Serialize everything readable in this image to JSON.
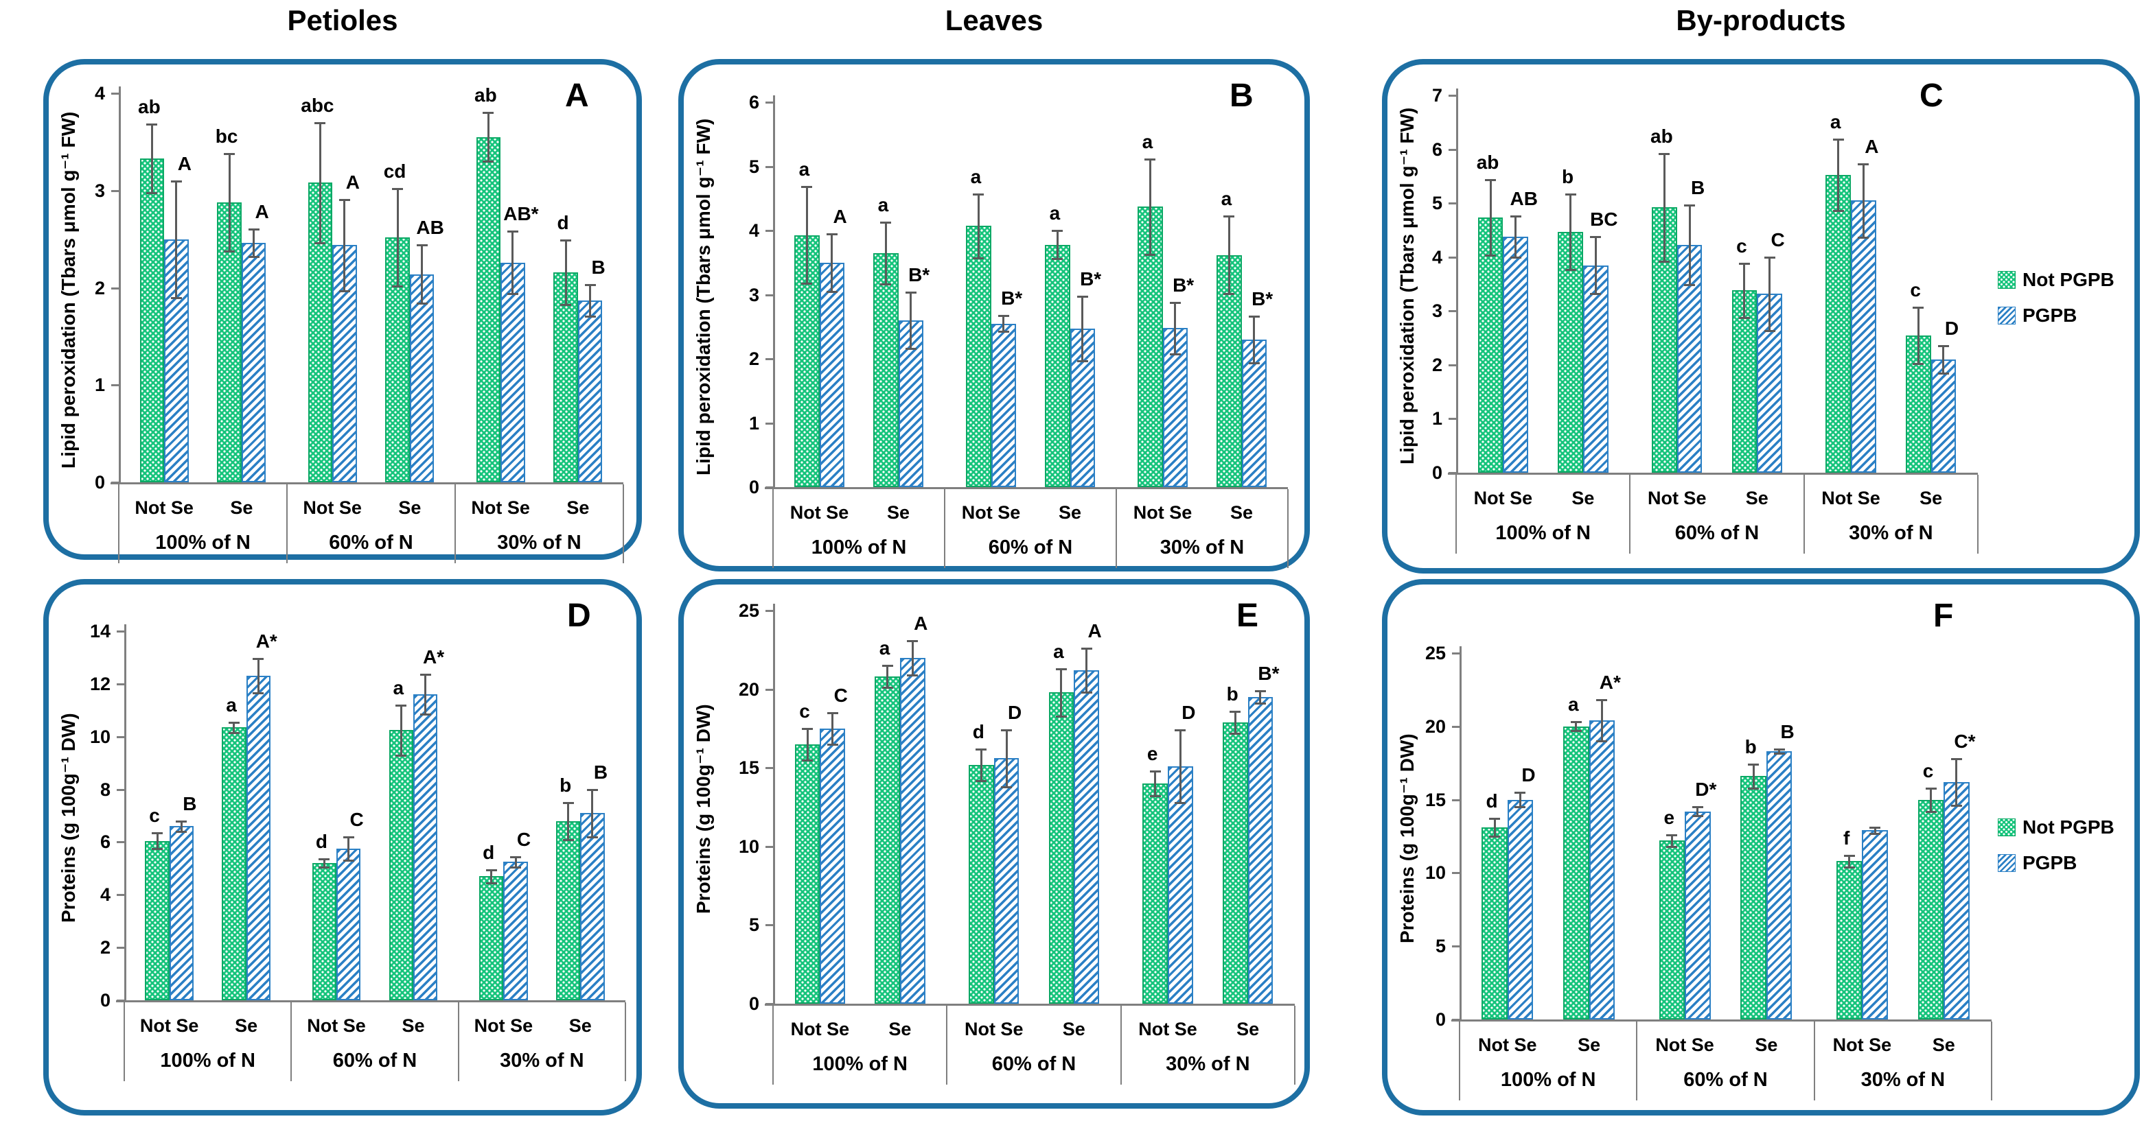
{
  "figure": {
    "column_titles": [
      "Petioles",
      "Leaves",
      "By-products"
    ],
    "legend": {
      "items": [
        {
          "label": "Not PGPB",
          "series": "not_pgpb"
        },
        {
          "label": "PGPB",
          "series": "pgpb"
        }
      ]
    },
    "colors": {
      "not_pgpb_fill": "#16c47c",
      "pgpb_stripe": "#2b80c5",
      "panel_border": "#1d6fa3",
      "error_bar": "#5a5a5a",
      "axis": "#7f7f7f",
      "text": "#000000"
    }
  },
  "chart_data": [
    {
      "type": "bar",
      "panel": "A",
      "column": "Petioles",
      "ylabel": "Lipid peroxidation (Tbars μmol g⁻¹ FW)",
      "ylim": [
        0,
        4
      ],
      "ystep": 1,
      "series_names": [
        "Not PGPB",
        "PGPB"
      ],
      "group_labels": [
        "100% of N",
        "60% of N",
        "30% of N"
      ],
      "sub_labels": [
        "Not Se",
        "Se"
      ],
      "bars": [
        {
          "group": "100% of N",
          "sub": "Not Se",
          "values": [
            3.33,
            2.5
          ],
          "errors": [
            0.35,
            0.6
          ],
          "letters": [
            "ab",
            "A"
          ]
        },
        {
          "group": "100% of N",
          "sub": "Se",
          "values": [
            2.88,
            2.46
          ],
          "errors": [
            0.5,
            0.14
          ],
          "letters": [
            "bc",
            "A"
          ]
        },
        {
          "group": "60% of N",
          "sub": "Not Se",
          "values": [
            3.08,
            2.44
          ],
          "errors": [
            0.62,
            0.47
          ],
          "letters": [
            "abc",
            "A"
          ]
        },
        {
          "group": "60% of N",
          "sub": "Se",
          "values": [
            2.52,
            2.14
          ],
          "errors": [
            0.5,
            0.3
          ],
          "letters": [
            "cd",
            "AB"
          ]
        },
        {
          "group": "30% of N",
          "sub": "Not Se",
          "values": [
            3.55,
            2.26
          ],
          "errors": [
            0.25,
            0.32
          ],
          "letters": [
            "ab",
            "AB*"
          ]
        },
        {
          "group": "30% of N",
          "sub": "Se",
          "values": [
            2.16,
            1.87
          ],
          "errors": [
            0.33,
            0.16
          ],
          "letters": [
            "d",
            "B"
          ]
        }
      ]
    },
    {
      "type": "bar",
      "panel": "B",
      "column": "Leaves",
      "ylabel": "Lipid peroxidation (Tbars μmol g⁻¹ FW)",
      "ylim": [
        0,
        6
      ],
      "ystep": 1,
      "series_names": [
        "Not PGPB",
        "PGPB"
      ],
      "group_labels": [
        "100% of N",
        "60% of N",
        "30% of N"
      ],
      "sub_labels": [
        "Not Se",
        "Se"
      ],
      "bars": [
        {
          "group": "100% of N",
          "sub": "Not Se",
          "values": [
            3.93,
            3.5
          ],
          "errors": [
            0.75,
            0.45
          ],
          "letters": [
            "a",
            "A"
          ]
        },
        {
          "group": "100% of N",
          "sub": "Se",
          "values": [
            3.65,
            2.6
          ],
          "errors": [
            0.48,
            0.44
          ],
          "letters": [
            "a",
            "B*"
          ]
        },
        {
          "group": "60% of N",
          "sub": "Not Se",
          "values": [
            4.07,
            2.55
          ],
          "errors": [
            0.5,
            0.12
          ],
          "letters": [
            "a",
            "B*"
          ]
        },
        {
          "group": "60% of N",
          "sub": "Se",
          "values": [
            3.78,
            2.47
          ],
          "errors": [
            0.22,
            0.5
          ],
          "letters": [
            "a",
            "B*"
          ]
        },
        {
          "group": "30% of N",
          "sub": "Not Se",
          "values": [
            4.37,
            2.48
          ],
          "errors": [
            0.74,
            0.4
          ],
          "letters": [
            "a",
            "B*"
          ]
        },
        {
          "group": "30% of N",
          "sub": "Se",
          "values": [
            3.62,
            2.3
          ],
          "errors": [
            0.6,
            0.36
          ],
          "letters": [
            "a",
            "B*"
          ]
        }
      ]
    },
    {
      "type": "bar",
      "panel": "C",
      "column": "By-products",
      "ylabel": "Lipid peroxidation (Tbars μmol g⁻¹ FW)",
      "ylim": [
        0,
        7
      ],
      "ystep": 1,
      "series_names": [
        "Not PGPB",
        "PGPB"
      ],
      "group_labels": [
        "100% of N",
        "60% of N",
        "30% of N"
      ],
      "sub_labels": [
        "Not Se",
        "Se"
      ],
      "show_legend": true,
      "bars": [
        {
          "group": "100% of N",
          "sub": "Not Se",
          "values": [
            4.73,
            4.38
          ],
          "errors": [
            0.7,
            0.38
          ],
          "letters": [
            "ab",
            "AB"
          ]
        },
        {
          "group": "100% of N",
          "sub": "Se",
          "values": [
            4.47,
            3.85
          ],
          "errors": [
            0.7,
            0.53
          ],
          "letters": [
            "b",
            "BC"
          ]
        },
        {
          "group": "60% of N",
          "sub": "Not Se",
          "values": [
            4.92,
            4.23
          ],
          "errors": [
            1.0,
            0.74
          ],
          "letters": [
            "ab",
            "B"
          ]
        },
        {
          "group": "60% of N",
          "sub": "Se",
          "values": [
            3.38,
            3.32
          ],
          "errors": [
            0.5,
            0.68
          ],
          "letters": [
            "c",
            "C"
          ]
        },
        {
          "group": "30% of N",
          "sub": "Not Se",
          "values": [
            5.52,
            5.05
          ],
          "errors": [
            0.66,
            0.68
          ],
          "letters": [
            "a",
            "A"
          ]
        },
        {
          "group": "30% of N",
          "sub": "Se",
          "values": [
            2.55,
            2.1
          ],
          "errors": [
            0.52,
            0.25
          ],
          "letters": [
            "c",
            "D"
          ]
        }
      ]
    },
    {
      "type": "bar",
      "panel": "D",
      "column": "Petioles",
      "ylabel": "Proteins (g 100g⁻¹ DW)",
      "ylim": [
        0,
        14
      ],
      "ystep": 2,
      "series_names": [
        "Not PGPB",
        "PGPB"
      ],
      "group_labels": [
        "100% of N",
        "60% of N",
        "30% of N"
      ],
      "sub_labels": [
        "Not Se",
        "Se"
      ],
      "bars": [
        {
          "group": "100% of N",
          "sub": "Not Se",
          "values": [
            6.05,
            6.6
          ],
          "errors": [
            0.3,
            0.2
          ],
          "letters": [
            "c",
            "B"
          ]
        },
        {
          "group": "100% of N",
          "sub": "Se",
          "values": [
            10.35,
            12.3
          ],
          "errors": [
            0.2,
            0.65
          ],
          "letters": [
            "a",
            "A*"
          ]
        },
        {
          "group": "60% of N",
          "sub": "Not Se",
          "values": [
            5.2,
            5.75
          ],
          "errors": [
            0.15,
            0.45
          ],
          "letters": [
            "d",
            "C"
          ]
        },
        {
          "group": "60% of N",
          "sub": "Se",
          "values": [
            10.25,
            11.6
          ],
          "errors": [
            0.95,
            0.75
          ],
          "letters": [
            "a",
            "A*"
          ]
        },
        {
          "group": "30% of N",
          "sub": "Not Se",
          "values": [
            4.7,
            5.25
          ],
          "errors": [
            0.25,
            0.2
          ],
          "letters": [
            "d",
            "C"
          ]
        },
        {
          "group": "30% of N",
          "sub": "Se",
          "values": [
            6.8,
            7.1
          ],
          "errors": [
            0.7,
            0.9
          ],
          "letters": [
            "b",
            "B"
          ]
        }
      ]
    },
    {
      "type": "bar",
      "panel": "E",
      "column": "Leaves",
      "ylabel": "Proteins (g 100g⁻¹ DW)",
      "ylim": [
        0,
        25
      ],
      "ystep": 5,
      "series_names": [
        "Not PGPB",
        "PGPB"
      ],
      "group_labels": [
        "100% of N",
        "60% of N",
        "30% of N"
      ],
      "sub_labels": [
        "Not Se",
        "Se"
      ],
      "bars": [
        {
          "group": "100% of N",
          "sub": "Not Se",
          "values": [
            16.5,
            17.5
          ],
          "errors": [
            1.0,
            1.0
          ],
          "letters": [
            "c",
            "C"
          ]
        },
        {
          "group": "100% of N",
          "sub": "Se",
          "values": [
            20.8,
            22.0
          ],
          "errors": [
            0.7,
            1.1
          ],
          "letters": [
            "a",
            "A"
          ]
        },
        {
          "group": "60% of N",
          "sub": "Not Se",
          "values": [
            15.2,
            15.6
          ],
          "errors": [
            1.0,
            1.8
          ],
          "letters": [
            "d",
            "D"
          ]
        },
        {
          "group": "60% of N",
          "sub": "Se",
          "values": [
            19.8,
            21.2
          ],
          "errors": [
            1.5,
            1.4
          ],
          "letters": [
            "a",
            "A"
          ]
        },
        {
          "group": "30% of N",
          "sub": "Not Se",
          "values": [
            14.0,
            15.1
          ],
          "errors": [
            0.8,
            2.3
          ],
          "letters": [
            "e",
            "D"
          ]
        },
        {
          "group": "30% of N",
          "sub": "Se",
          "values": [
            17.9,
            19.5
          ],
          "errors": [
            0.7,
            0.4
          ],
          "letters": [
            "b",
            "B*"
          ]
        }
      ]
    },
    {
      "type": "bar",
      "panel": "F",
      "column": "By-products",
      "ylabel": "Proteins (g 100g⁻¹ DW)",
      "ylim": [
        0,
        25
      ],
      "ystep": 5,
      "series_names": [
        "Not PGPB",
        "PGPB"
      ],
      "group_labels": [
        "100% of N",
        "60% of N",
        "30% of N"
      ],
      "sub_labels": [
        "Not Se",
        "Se"
      ],
      "show_legend": true,
      "bars": [
        {
          "group": "100% of N",
          "sub": "Not Se",
          "values": [
            13.1,
            15.0
          ],
          "errors": [
            0.6,
            0.5
          ],
          "letters": [
            "d",
            "D"
          ]
        },
        {
          "group": "100% of N",
          "sub": "Se",
          "values": [
            20.0,
            20.4
          ],
          "errors": [
            0.3,
            1.4
          ],
          "letters": [
            "a",
            "A*"
          ]
        },
        {
          "group": "60% of N",
          "sub": "Not Se",
          "values": [
            12.2,
            14.2
          ],
          "errors": [
            0.4,
            0.3
          ],
          "letters": [
            "e",
            "D*"
          ]
        },
        {
          "group": "60% of N",
          "sub": "Se",
          "values": [
            16.6,
            18.3
          ],
          "errors": [
            0.8,
            0.15
          ],
          "letters": [
            "b",
            "B"
          ]
        },
        {
          "group": "30% of N",
          "sub": "Not Se",
          "values": [
            10.8,
            12.9
          ],
          "errors": [
            0.4,
            0.2
          ],
          "letters": [
            "f",
            ""
          ]
        },
        {
          "group": "30% of N",
          "sub": "Se",
          "values": [
            15.0,
            16.2
          ],
          "errors": [
            0.8,
            1.6
          ],
          "letters": [
            "c",
            "C*"
          ]
        }
      ]
    }
  ]
}
